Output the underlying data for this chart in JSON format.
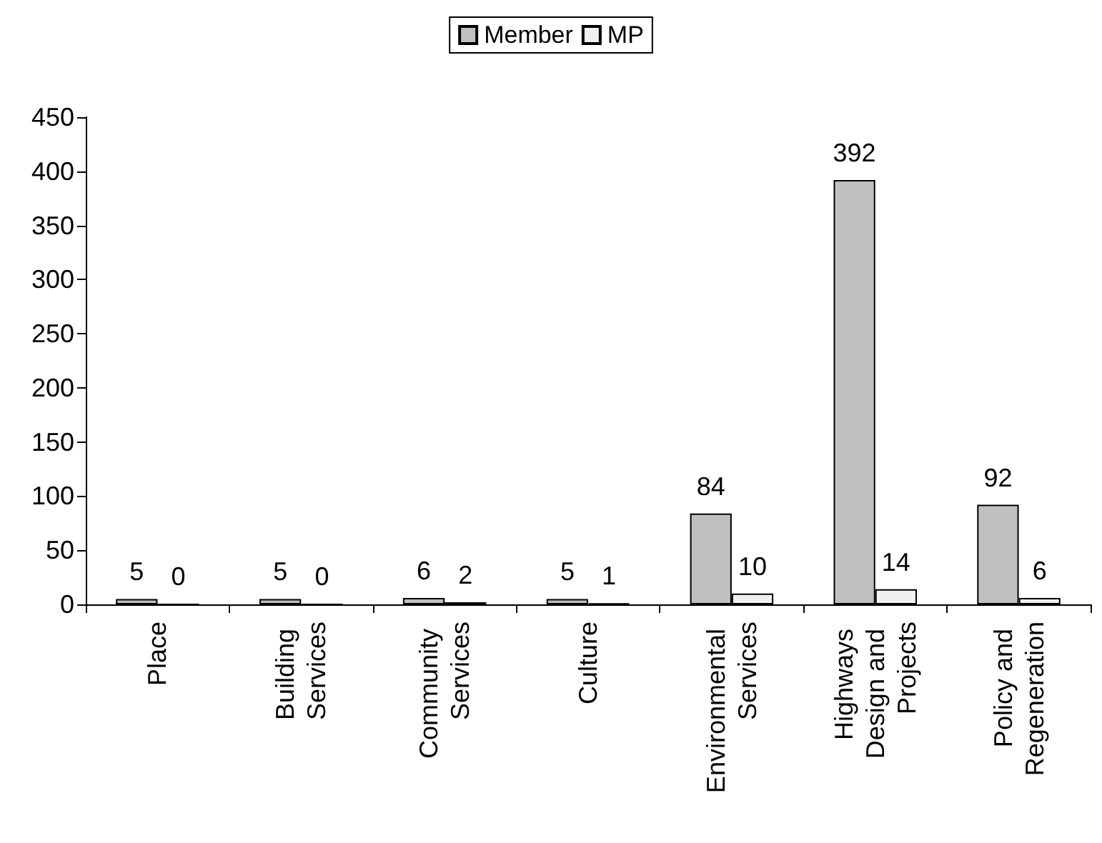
{
  "chart_data": {
    "type": "bar",
    "categories": [
      "Place",
      "Building Services",
      "Community Services",
      "Culture",
      "Environmental Services",
      "Highways Design and Projects",
      "Policy and Regeneration"
    ],
    "series": [
      {
        "name": "Member",
        "color": "#c0c0c0",
        "values": [
          5,
          5,
          6,
          5,
          84,
          392,
          92
        ]
      },
      {
        "name": "MP",
        "color": "#f0f0f0",
        "values": [
          0,
          0,
          2,
          1,
          10,
          14,
          6
        ]
      }
    ],
    "ylim": [
      0,
      450
    ],
    "yticks": [
      0,
      50,
      100,
      150,
      200,
      250,
      300,
      350,
      400,
      450
    ],
    "data_labels": true,
    "legend": "top",
    "grid": false
  }
}
